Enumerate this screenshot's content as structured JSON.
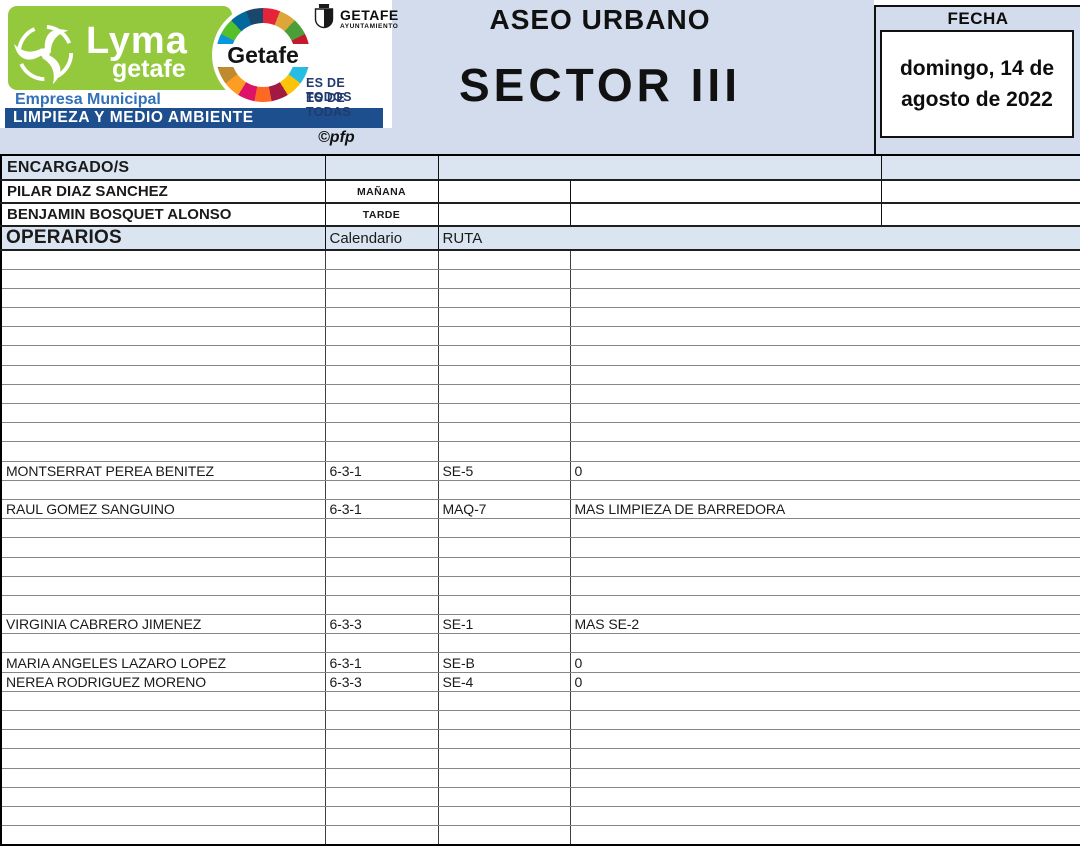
{
  "header": {
    "brand": {
      "name": "Lyma",
      "sub": "getafe",
      "empresa": "Empresa Municipal",
      "tagline": "LIMPIEZA Y MEDIO AMBIENTE"
    },
    "getafe": {
      "wheel_label": "Getafe",
      "ayuntamiento_name": "GETAFE",
      "ayuntamiento_sub": "AYUNTAMIENTO",
      "slogan_line1": "ES DE TODOS",
      "slogan_line2": "ES DE TODAS"
    },
    "copyright": "©pfp",
    "title_line1": "ASEO URBANO",
    "title_line2": "SECTOR III",
    "fecha_label": "FECHA",
    "fecha_line1": "domingo, 14 de",
    "fecha_line2": "agosto de 2022"
  },
  "encargados": {
    "section_label": "ENCARGADO/S",
    "rows": [
      {
        "name": "PILAR DIAZ SANCHEZ",
        "turno": "MAÑANA"
      },
      {
        "name": "BENJAMIN BOSQUET ALONSO",
        "turno": "TARDE"
      }
    ]
  },
  "operarios": {
    "section_label": "OPERARIOS",
    "columns": {
      "calendario": "Calendario",
      "ruta": "RUTA"
    },
    "total_rows": 31,
    "rows": [
      {
        "index": 11,
        "name": "MONTSERRAT PEREA BENITEZ",
        "calendario": "6-3-1",
        "ruta": "SE-5",
        "observaciones": "0"
      },
      {
        "index": 13,
        "name": "RAUL GOMEZ SANGUINO",
        "calendario": "6-3-1",
        "ruta": "MAQ-7",
        "observaciones": "MAS LIMPIEZA DE BARREDORA"
      },
      {
        "index": 19,
        "name": "VIRGINIA CABRERO JIMENEZ",
        "calendario": "6-3-3",
        "ruta": "SE-1",
        "observaciones": "MAS SE-2"
      },
      {
        "index": 21,
        "name": "MARIA ANGELES LAZARO LOPEZ",
        "calendario": "6-3-1",
        "ruta": "SE-B",
        "observaciones": "0"
      },
      {
        "index": 22,
        "name": "NEREA RODRIGUEZ MORENO",
        "calendario": "6-3-3",
        "ruta": "SE-4",
        "observaciones": "0"
      }
    ]
  },
  "colors": {
    "brand_green": "#94c83d",
    "brand_navy_bar": "#1d4e8d",
    "empresa_text_blue": "#3271b8",
    "slogan_navy": "#223a6d",
    "header_panel_blue": "#d3dcec",
    "section_row_blue": "#dbe5f1",
    "sdg_wheel": [
      "#E5243B",
      "#DDA63A",
      "#4C9F38",
      "#C5192D",
      "#FF3A21",
      "#26BDE2",
      "#FCC30B",
      "#A21942",
      "#FD6925",
      "#DD1367",
      "#FD9D24",
      "#BF8B2E",
      "#3F7E44",
      "#0A97D9",
      "#56C02B",
      "#00689D",
      "#19486A"
    ]
  }
}
